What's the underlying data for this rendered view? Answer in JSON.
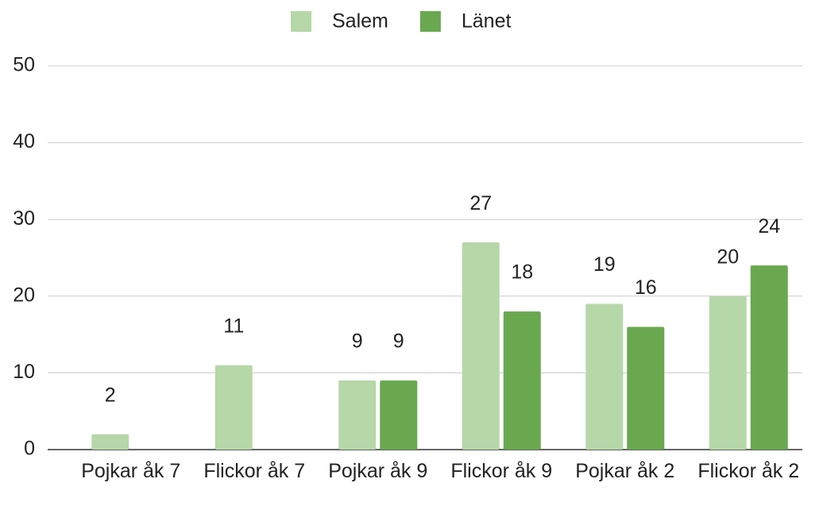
{
  "chart_data": {
    "type": "bar",
    "categories": [
      "Pojkar åk 7",
      "Flickor åk 7",
      "Pojkar åk 9",
      "Flickor åk 9",
      "Pojkar åk 2",
      "Flickor åk 2"
    ],
    "series": [
      {
        "name": "Salem",
        "color": "#b6d7a8",
        "values": [
          2,
          11,
          9,
          27,
          19,
          20
        ]
      },
      {
        "name": "Länet",
        "color": "#6aa84f",
        "values": [
          null,
          null,
          9,
          18,
          16,
          24
        ]
      }
    ],
    "ylim": [
      0,
      50
    ],
    "yticks": [
      0,
      10,
      20,
      30,
      40,
      50
    ],
    "grid": true,
    "legend": "top",
    "data_labels": true
  }
}
